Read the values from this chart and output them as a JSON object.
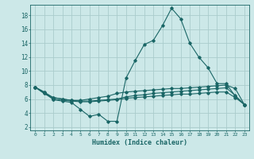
{
  "title": "",
  "xlabel": "Humidex (Indice chaleur)",
  "ylabel": "",
  "background_color": "#cce8e8",
  "grid_color": "#aacccc",
  "line_color": "#1a6666",
  "xlim": [
    -0.5,
    23.5
  ],
  "ylim": [
    1.5,
    19.5
  ],
  "yticks": [
    2,
    4,
    6,
    8,
    10,
    12,
    14,
    16,
    18
  ],
  "xticks": [
    0,
    1,
    2,
    3,
    4,
    5,
    6,
    7,
    8,
    9,
    10,
    11,
    12,
    13,
    14,
    15,
    16,
    17,
    18,
    19,
    20,
    21,
    22,
    23
  ],
  "series": [
    [
      7.7,
      7.0,
      5.9,
      5.7,
      5.5,
      4.5,
      3.5,
      3.8,
      2.8,
      2.8,
      9.0,
      11.5,
      13.8,
      14.4,
      16.5,
      19.0,
      17.5,
      14.0,
      12.0,
      10.5,
      8.2,
      8.2,
      6.4,
      5.2
    ],
    [
      7.7,
      7.0,
      6.2,
      6.0,
      5.8,
      5.8,
      6.0,
      6.2,
      6.4,
      6.8,
      7.0,
      7.1,
      7.2,
      7.3,
      7.4,
      7.5,
      7.5,
      7.6,
      7.7,
      7.8,
      7.9,
      8.0,
      7.5,
      5.2
    ],
    [
      7.7,
      6.8,
      6.2,
      6.0,
      5.8,
      5.7,
      5.7,
      5.8,
      5.9,
      6.0,
      6.3,
      6.5,
      6.6,
      6.8,
      6.9,
      7.0,
      7.1,
      7.2,
      7.3,
      7.4,
      7.5,
      7.6,
      6.5,
      5.2
    ],
    [
      7.7,
      6.8,
      6.0,
      5.8,
      5.7,
      5.6,
      5.6,
      5.7,
      5.8,
      5.9,
      6.1,
      6.2,
      6.3,
      6.4,
      6.5,
      6.6,
      6.7,
      6.7,
      6.8,
      6.9,
      7.0,
      7.0,
      6.2,
      5.2
    ]
  ]
}
